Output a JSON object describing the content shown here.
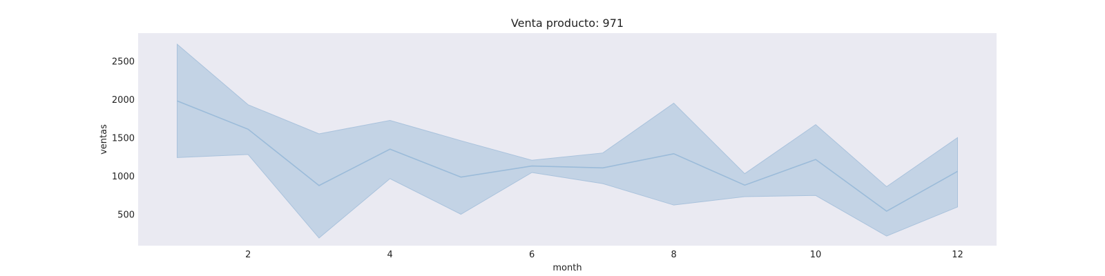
{
  "chart_data": {
    "type": "line",
    "title": "Venta producto: 971",
    "xlabel": "month",
    "ylabel": "ventas",
    "x": [
      1,
      2,
      3,
      4,
      5,
      6,
      7,
      8,
      9,
      10,
      11,
      12
    ],
    "series": [
      {
        "name": "ventas",
        "values": [
          1980,
          1610,
          875,
          1350,
          985,
          1130,
          1105,
          1290,
          880,
          1215,
          540,
          1060
        ],
        "ci_lower": [
          1240,
          1280,
          190,
          965,
          500,
          1045,
          900,
          620,
          730,
          745,
          215,
          595
        ],
        "ci_upper": [
          2720,
          1930,
          1550,
          1725,
          1460,
          1205,
          1300,
          1950,
          1030,
          1670,
          860,
          1500
        ]
      }
    ],
    "xlim": [
      0.45,
      12.55
    ],
    "ylim": [
      90,
      2865
    ],
    "xticks": [
      2,
      4,
      6,
      8,
      10,
      12
    ],
    "yticks": [
      500,
      1000,
      1500,
      2000,
      2500
    ],
    "grid": false,
    "colors": {
      "plot_background": "#eaeaf2",
      "line": "#9bbbd9",
      "band": "#c3d3e5",
      "band_edge": "#a9c2dc"
    }
  }
}
